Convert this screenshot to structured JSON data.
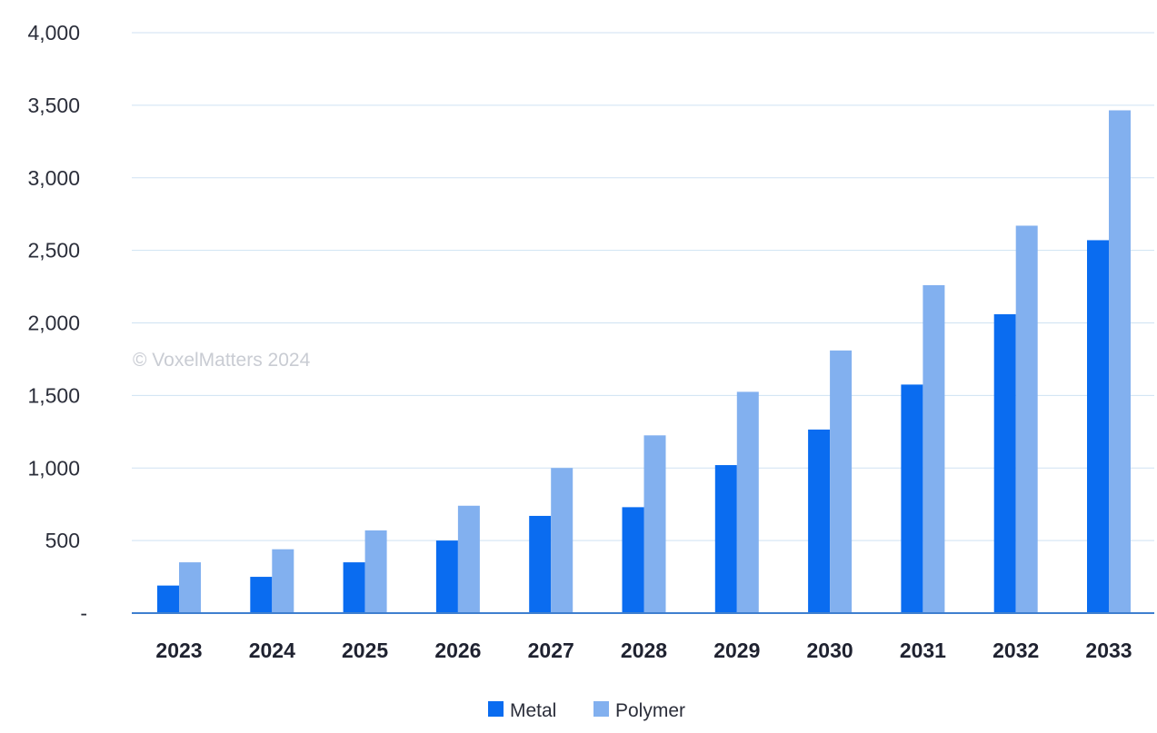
{
  "chart_data": {
    "type": "bar",
    "categories": [
      "2023",
      "2024",
      "2025",
      "2026",
      "2027",
      "2028",
      "2029",
      "2030",
      "2031",
      "2032",
      "2033"
    ],
    "series": [
      {
        "name": "Metal",
        "color": "#0a6cf0",
        "values": [
          190,
          250,
          350,
          500,
          670,
          730,
          1020,
          1265,
          1575,
          2060,
          2570
        ]
      },
      {
        "name": "Polymer",
        "color": "#82b0ef",
        "values": [
          350,
          440,
          570,
          740,
          1000,
          1225,
          1525,
          1810,
          2260,
          2670,
          3465
        ]
      }
    ],
    "y_ticks": [
      {
        "value": 0,
        "label": "-"
      },
      {
        "value": 500,
        "label": "500"
      },
      {
        "value": 1000,
        "label": "1,000"
      },
      {
        "value": 1500,
        "label": "1,500"
      },
      {
        "value": 2000,
        "label": "2,000"
      },
      {
        "value": 2500,
        "label": "2,500"
      },
      {
        "value": 3000,
        "label": "3,000"
      },
      {
        "value": 3500,
        "label": "3,500"
      },
      {
        "value": 4000,
        "label": "4,000"
      }
    ],
    "ylim": [
      0,
      4000
    ],
    "grid": true,
    "legend_position": "bottom-center",
    "watermark": "© VoxelMatters 2024",
    "title": "",
    "xlabel": "",
    "ylabel": ""
  }
}
